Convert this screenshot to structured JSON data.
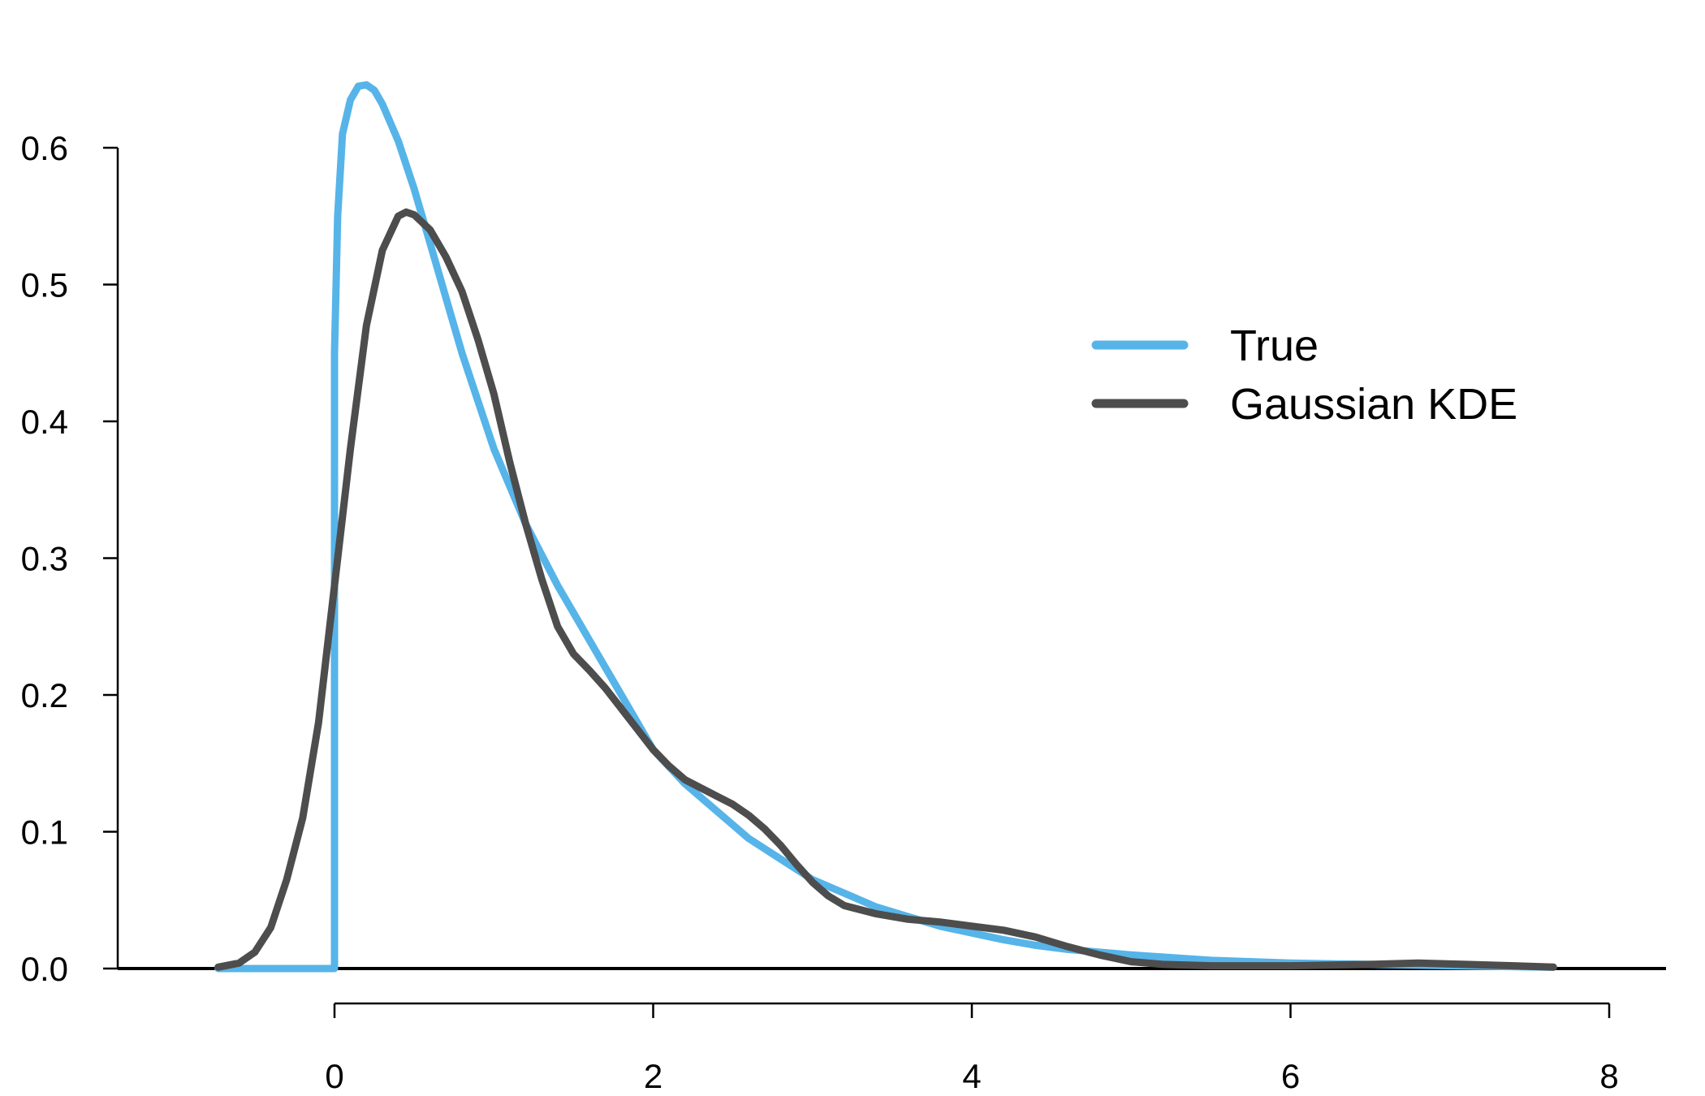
{
  "chart_data": {
    "type": "line",
    "title": "",
    "xlabel": "",
    "ylabel": "",
    "xlim": [
      -1.4,
      8.0
    ],
    "ylim": [
      0.0,
      0.65
    ],
    "x_ticks": [
      0,
      2,
      4,
      6,
      8
    ],
    "x_tick_labels": [
      "0",
      "2",
      "4",
      "6",
      "8"
    ],
    "y_ticks": [
      0.0,
      0.1,
      0.2,
      0.3,
      0.4,
      0.5,
      0.6
    ],
    "y_tick_labels": [
      "0.0",
      "0.1",
      "0.2",
      "0.3",
      "0.4",
      "0.5",
      "0.6"
    ],
    "grid": false,
    "legend_position": "top-right",
    "series": [
      {
        "name": "True",
        "color": "#56B4E9",
        "points": [
          [
            -0.73,
            0.0
          ],
          [
            -0.05,
            0.0
          ],
          [
            0.0,
            0.0
          ],
          [
            0.0,
            0.3
          ],
          [
            0.0,
            0.45
          ],
          [
            0.02,
            0.55
          ],
          [
            0.05,
            0.61
          ],
          [
            0.1,
            0.635
          ],
          [
            0.15,
            0.645
          ],
          [
            0.2,
            0.646
          ],
          [
            0.25,
            0.642
          ],
          [
            0.3,
            0.632
          ],
          [
            0.4,
            0.605
          ],
          [
            0.5,
            0.57
          ],
          [
            0.6,
            0.53
          ],
          [
            0.7,
            0.49
          ],
          [
            0.8,
            0.45
          ],
          [
            0.9,
            0.415
          ],
          [
            1.0,
            0.38
          ],
          [
            1.2,
            0.325
          ],
          [
            1.4,
            0.28
          ],
          [
            1.6,
            0.24
          ],
          [
            1.8,
            0.2
          ],
          [
            2.0,
            0.16
          ],
          [
            2.2,
            0.135
          ],
          [
            2.4,
            0.115
          ],
          [
            2.6,
            0.095
          ],
          [
            2.8,
            0.08
          ],
          [
            3.0,
            0.065
          ],
          [
            3.2,
            0.055
          ],
          [
            3.4,
            0.045
          ],
          [
            3.6,
            0.038
          ],
          [
            3.8,
            0.031
          ],
          [
            4.0,
            0.026
          ],
          [
            4.2,
            0.021
          ],
          [
            4.4,
            0.017
          ],
          [
            4.6,
            0.014
          ],
          [
            4.8,
            0.012
          ],
          [
            5.0,
            0.01
          ],
          [
            5.5,
            0.006
          ],
          [
            6.0,
            0.004
          ],
          [
            6.5,
            0.003
          ],
          [
            7.0,
            0.002
          ],
          [
            7.65,
            0.001
          ]
        ]
      },
      {
        "name": "Gaussian KDE",
        "color": "#4D4D4D",
        "points": [
          [
            -0.73,
            0.001
          ],
          [
            -0.6,
            0.004
          ],
          [
            -0.5,
            0.012
          ],
          [
            -0.4,
            0.03
          ],
          [
            -0.3,
            0.065
          ],
          [
            -0.2,
            0.11
          ],
          [
            -0.1,
            0.18
          ],
          [
            0.0,
            0.28
          ],
          [
            0.1,
            0.38
          ],
          [
            0.2,
            0.47
          ],
          [
            0.3,
            0.525
          ],
          [
            0.4,
            0.55
          ],
          [
            0.45,
            0.553
          ],
          [
            0.5,
            0.551
          ],
          [
            0.6,
            0.54
          ],
          [
            0.7,
            0.52
          ],
          [
            0.8,
            0.495
          ],
          [
            0.9,
            0.46
          ],
          [
            1.0,
            0.42
          ],
          [
            1.1,
            0.37
          ],
          [
            1.2,
            0.325
          ],
          [
            1.3,
            0.285
          ],
          [
            1.4,
            0.25
          ],
          [
            1.5,
            0.23
          ],
          [
            1.6,
            0.218
          ],
          [
            1.7,
            0.205
          ],
          [
            1.8,
            0.19
          ],
          [
            1.9,
            0.175
          ],
          [
            2.0,
            0.16
          ],
          [
            2.1,
            0.148
          ],
          [
            2.2,
            0.138
          ],
          [
            2.3,
            0.132
          ],
          [
            2.4,
            0.126
          ],
          [
            2.5,
            0.12
          ],
          [
            2.6,
            0.112
          ],
          [
            2.7,
            0.102
          ],
          [
            2.8,
            0.09
          ],
          [
            2.9,
            0.076
          ],
          [
            3.0,
            0.063
          ],
          [
            3.1,
            0.053
          ],
          [
            3.2,
            0.046
          ],
          [
            3.4,
            0.04
          ],
          [
            3.6,
            0.036
          ],
          [
            3.8,
            0.034
          ],
          [
            4.0,
            0.031
          ],
          [
            4.2,
            0.028
          ],
          [
            4.4,
            0.023
          ],
          [
            4.6,
            0.016
          ],
          [
            4.8,
            0.01
          ],
          [
            5.0,
            0.005
          ],
          [
            5.2,
            0.003
          ],
          [
            5.5,
            0.002
          ],
          [
            6.0,
            0.002
          ],
          [
            6.5,
            0.003
          ],
          [
            6.8,
            0.004
          ],
          [
            7.1,
            0.003
          ],
          [
            7.4,
            0.002
          ],
          [
            7.65,
            0.001
          ]
        ]
      }
    ]
  }
}
